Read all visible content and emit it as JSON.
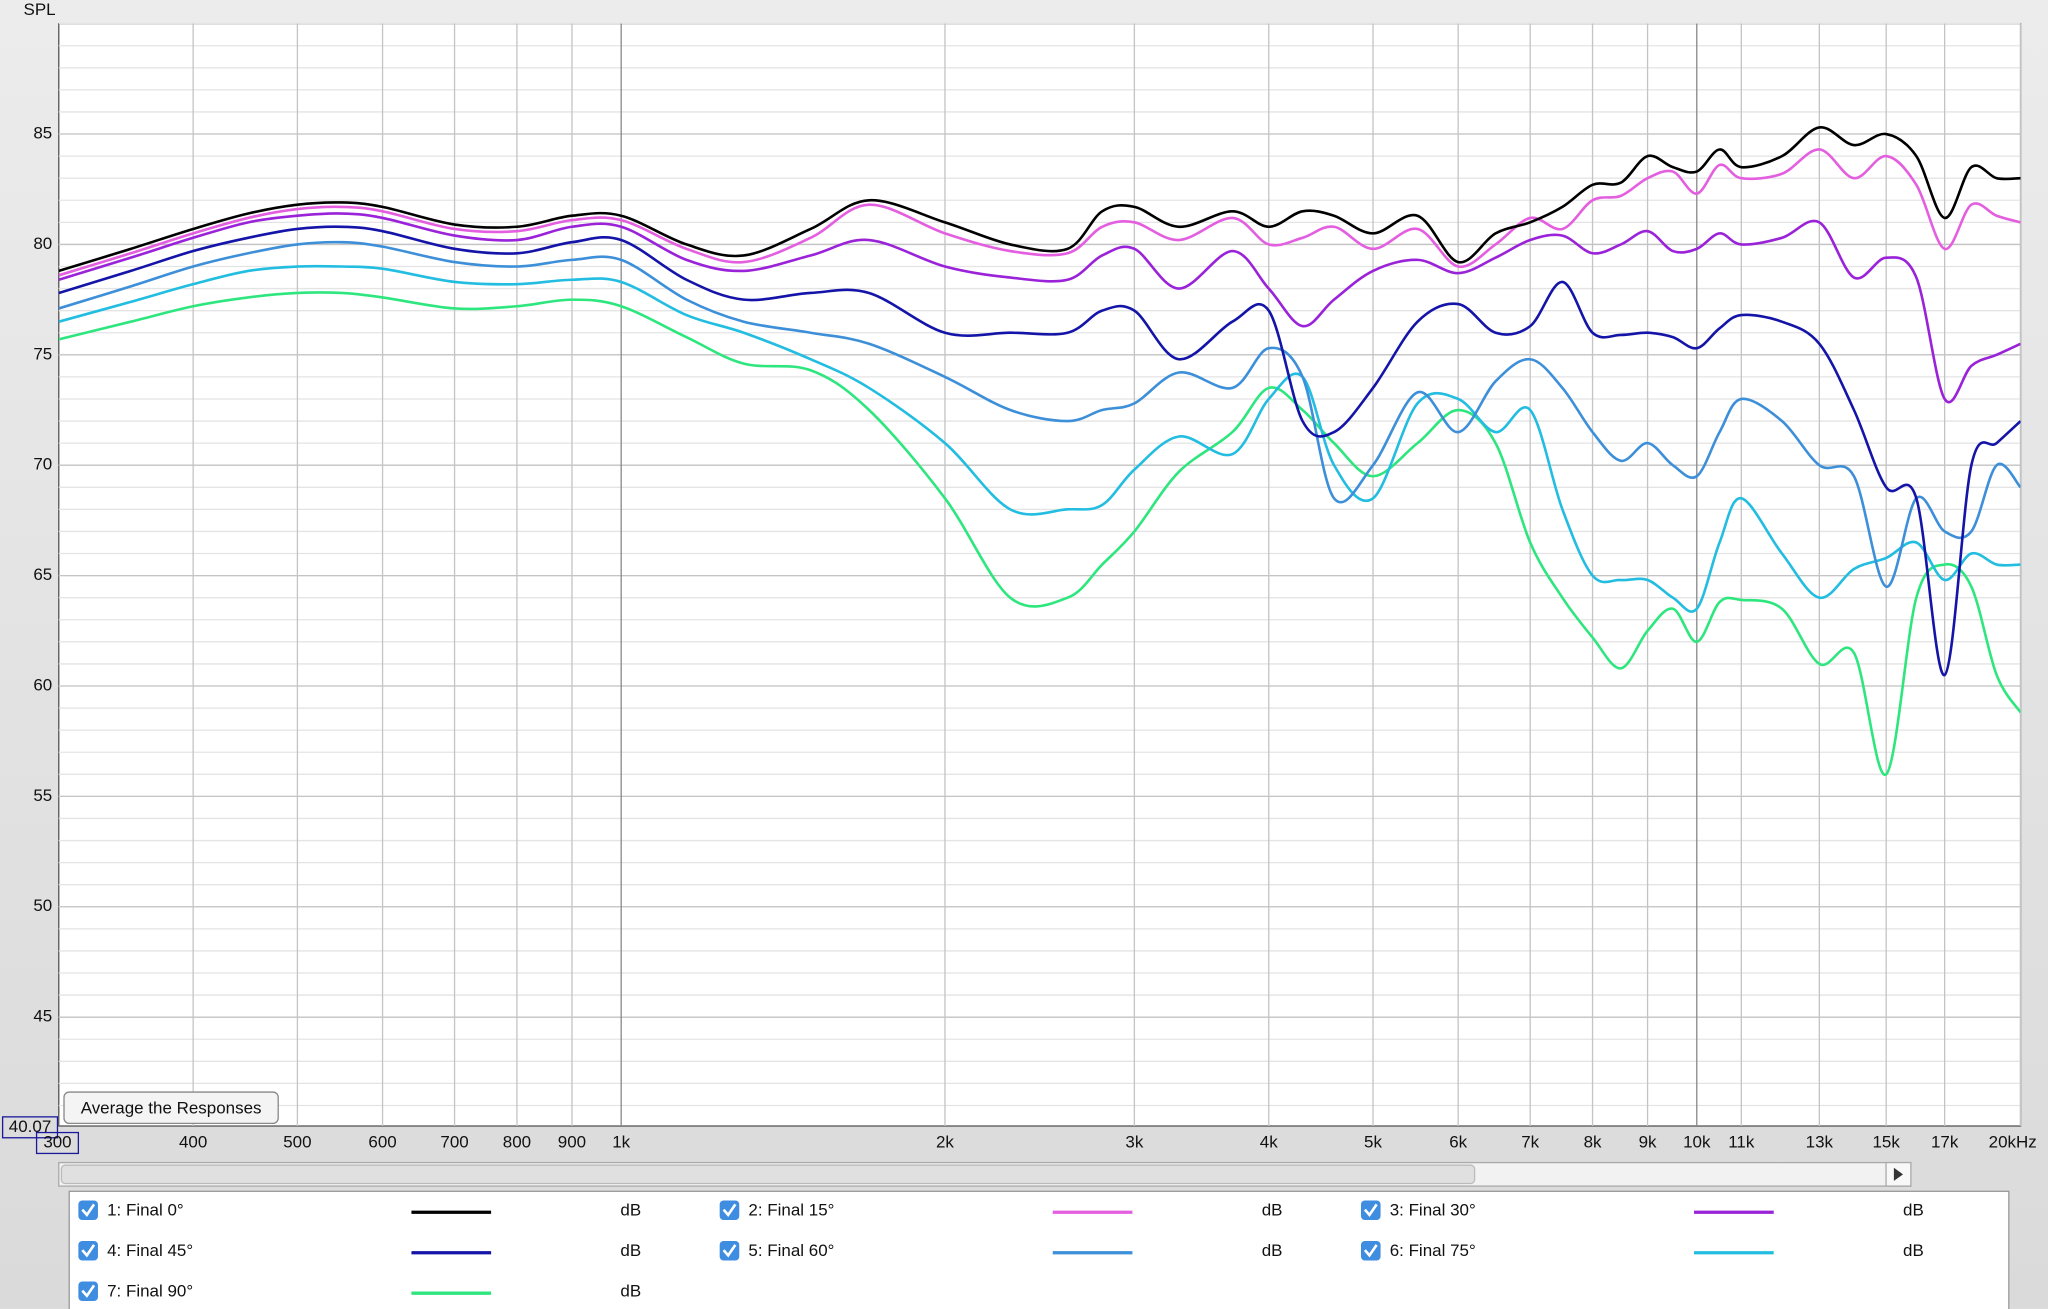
{
  "chart_data": {
    "type": "line",
    "ylabel": "SPL",
    "xscale": "log",
    "grid": true,
    "xlim": [
      300,
      20000
    ],
    "ylim": [
      40.07,
      90
    ],
    "xticks": [
      300,
      400,
      500,
      600,
      700,
      800,
      900,
      {
        "value": 1000,
        "label": "1k"
      },
      {
        "value": 2000,
        "label": "2k"
      },
      {
        "value": 3000,
        "label": "3k"
      },
      {
        "value": 4000,
        "label": "4k"
      },
      {
        "value": 5000,
        "label": "5k"
      },
      {
        "value": 6000,
        "label": "6k"
      },
      {
        "value": 7000,
        "label": "7k"
      },
      {
        "value": 8000,
        "label": "8k"
      },
      {
        "value": 9000,
        "label": "9k"
      },
      {
        "value": 10000,
        "label": "10k"
      },
      {
        "value": 11000,
        "label": "11k"
      },
      {
        "value": 13000,
        "label": "13k"
      },
      {
        "value": 15000,
        "label": "15k"
      },
      {
        "value": 17000,
        "label": "17k"
      },
      {
        "value": 20000,
        "label": "20kHz"
      }
    ],
    "yticks": [
      45,
      50,
      55,
      60,
      65,
      70,
      75,
      80,
      85
    ],
    "x": [
      300,
      350,
      400,
      450,
      500,
      550,
      600,
      700,
      800,
      900,
      1000,
      1150,
      1300,
      1500,
      1700,
      2000,
      2300,
      2600,
      2800,
      3000,
      3300,
      3700,
      4000,
      4300,
      4600,
      5000,
      5500,
      6000,
      6500,
      7000,
      7500,
      8000,
      8500,
      9000,
      9500,
      10000,
      10500,
      11000,
      12000,
      13000,
      14000,
      15000,
      16000,
      17000,
      18000,
      19000,
      20000
    ],
    "legend_unit": "dB",
    "series": [
      {
        "name": "1: Final 0°",
        "color": "#000000",
        "values": [
          78.8,
          79.8,
          80.7,
          81.4,
          81.8,
          81.9,
          81.7,
          80.9,
          80.8,
          81.3,
          81.3,
          80.0,
          79.5,
          80.7,
          82.0,
          81.0,
          80.0,
          79.8,
          81.5,
          81.7,
          80.8,
          81.5,
          80.8,
          81.5,
          81.3,
          80.5,
          81.3,
          79.2,
          80.5,
          81.0,
          81.7,
          82.7,
          82.8,
          84.0,
          83.5,
          83.3,
          84.3,
          83.5,
          84.0,
          85.3,
          84.5,
          85.0,
          84.0,
          81.2,
          83.5,
          83.0,
          83.0
        ]
      },
      {
        "name": "2: Final 15°",
        "color": "#e45ee0",
        "values": [
          78.6,
          79.6,
          80.5,
          81.2,
          81.6,
          81.7,
          81.5,
          80.7,
          80.6,
          81.1,
          81.1,
          79.8,
          79.2,
          80.3,
          81.8,
          80.5,
          79.7,
          79.6,
          80.8,
          81.0,
          80.2,
          81.2,
          80.0,
          80.3,
          80.8,
          79.8,
          80.7,
          79.0,
          80.0,
          81.2,
          80.7,
          82.0,
          82.2,
          83.0,
          83.3,
          82.3,
          83.6,
          83.0,
          83.2,
          84.3,
          83.0,
          84.0,
          82.7,
          79.8,
          81.8,
          81.3,
          81.0
        ]
      },
      {
        "name": "3: Final 30°",
        "color": "#9a22d8",
        "values": [
          78.4,
          79.4,
          80.3,
          81.0,
          81.3,
          81.4,
          81.2,
          80.4,
          80.2,
          80.8,
          80.8,
          79.3,
          78.8,
          79.5,
          80.2,
          79.0,
          78.5,
          78.4,
          79.5,
          79.8,
          78.0,
          79.7,
          78.0,
          76.3,
          77.5,
          78.8,
          79.3,
          78.7,
          79.4,
          80.2,
          80.4,
          79.6,
          80.0,
          80.6,
          79.7,
          79.8,
          80.5,
          80.0,
          80.3,
          81.0,
          78.5,
          79.4,
          78.5,
          73.0,
          74.5,
          75.0,
          75.5
        ]
      },
      {
        "name": "4: Final 45°",
        "color": "#1414a8",
        "values": [
          77.8,
          78.8,
          79.7,
          80.3,
          80.7,
          80.8,
          80.6,
          79.8,
          79.6,
          80.1,
          80.2,
          78.4,
          77.5,
          77.8,
          77.8,
          76.0,
          76.0,
          76.0,
          77.0,
          77.0,
          74.8,
          76.5,
          77.0,
          72.0,
          71.5,
          73.5,
          76.5,
          77.3,
          76.0,
          76.3,
          78.3,
          76.0,
          75.9,
          76.0,
          75.8,
          75.3,
          76.2,
          76.8,
          76.5,
          75.5,
          72.5,
          69.0,
          68.5,
          60.5,
          70.0,
          71.0,
          72.0
        ]
      },
      {
        "name": "5: Final 60°",
        "color": "#3c8fd8",
        "values": [
          77.1,
          78.1,
          79.0,
          79.6,
          80.0,
          80.1,
          79.9,
          79.2,
          79.0,
          79.3,
          79.3,
          77.5,
          76.5,
          76.0,
          75.5,
          74.0,
          72.5,
          72.0,
          72.5,
          72.8,
          74.2,
          73.5,
          75.3,
          74.0,
          68.5,
          70.0,
          73.3,
          71.5,
          73.8,
          74.8,
          73.5,
          71.5,
          70.2,
          71.0,
          70.0,
          69.5,
          71.5,
          73.0,
          72.0,
          70.0,
          69.5,
          64.5,
          68.5,
          67.0,
          67.0,
          70.0,
          69.0
        ]
      },
      {
        "name": "6: Final 75°",
        "color": "#22bde0",
        "values": [
          76.5,
          77.4,
          78.2,
          78.8,
          79.0,
          79.0,
          78.9,
          78.3,
          78.2,
          78.4,
          78.3,
          76.8,
          76.0,
          74.8,
          73.5,
          71.0,
          68.0,
          68.0,
          68.2,
          69.8,
          71.3,
          70.5,
          73.0,
          74.0,
          70.0,
          68.5,
          72.8,
          73.0,
          71.5,
          72.5,
          68.0,
          65.0,
          64.8,
          64.8,
          64.0,
          63.5,
          66.5,
          68.5,
          66.0,
          64.0,
          65.3,
          65.8,
          66.5,
          64.8,
          66.0,
          65.5,
          65.5
        ]
      },
      {
        "name": "7: Final 90°",
        "color": "#2ee67e",
        "values": [
          75.7,
          76.5,
          77.2,
          77.6,
          77.8,
          77.8,
          77.6,
          77.1,
          77.2,
          77.5,
          77.2,
          75.8,
          74.6,
          74.3,
          72.5,
          68.5,
          64.0,
          64.0,
          65.5,
          67.0,
          69.7,
          71.5,
          73.5,
          72.5,
          71.0,
          69.5,
          71.0,
          72.5,
          71.0,
          66.5,
          64.0,
          62.2,
          60.8,
          62.5,
          63.5,
          62.0,
          63.8,
          63.9,
          63.5,
          61.0,
          61.5,
          56.0,
          64.0,
          65.5,
          64.5,
          60.5,
          58.8
        ]
      }
    ]
  },
  "controls": {
    "average_button": "Average the Responses"
  }
}
